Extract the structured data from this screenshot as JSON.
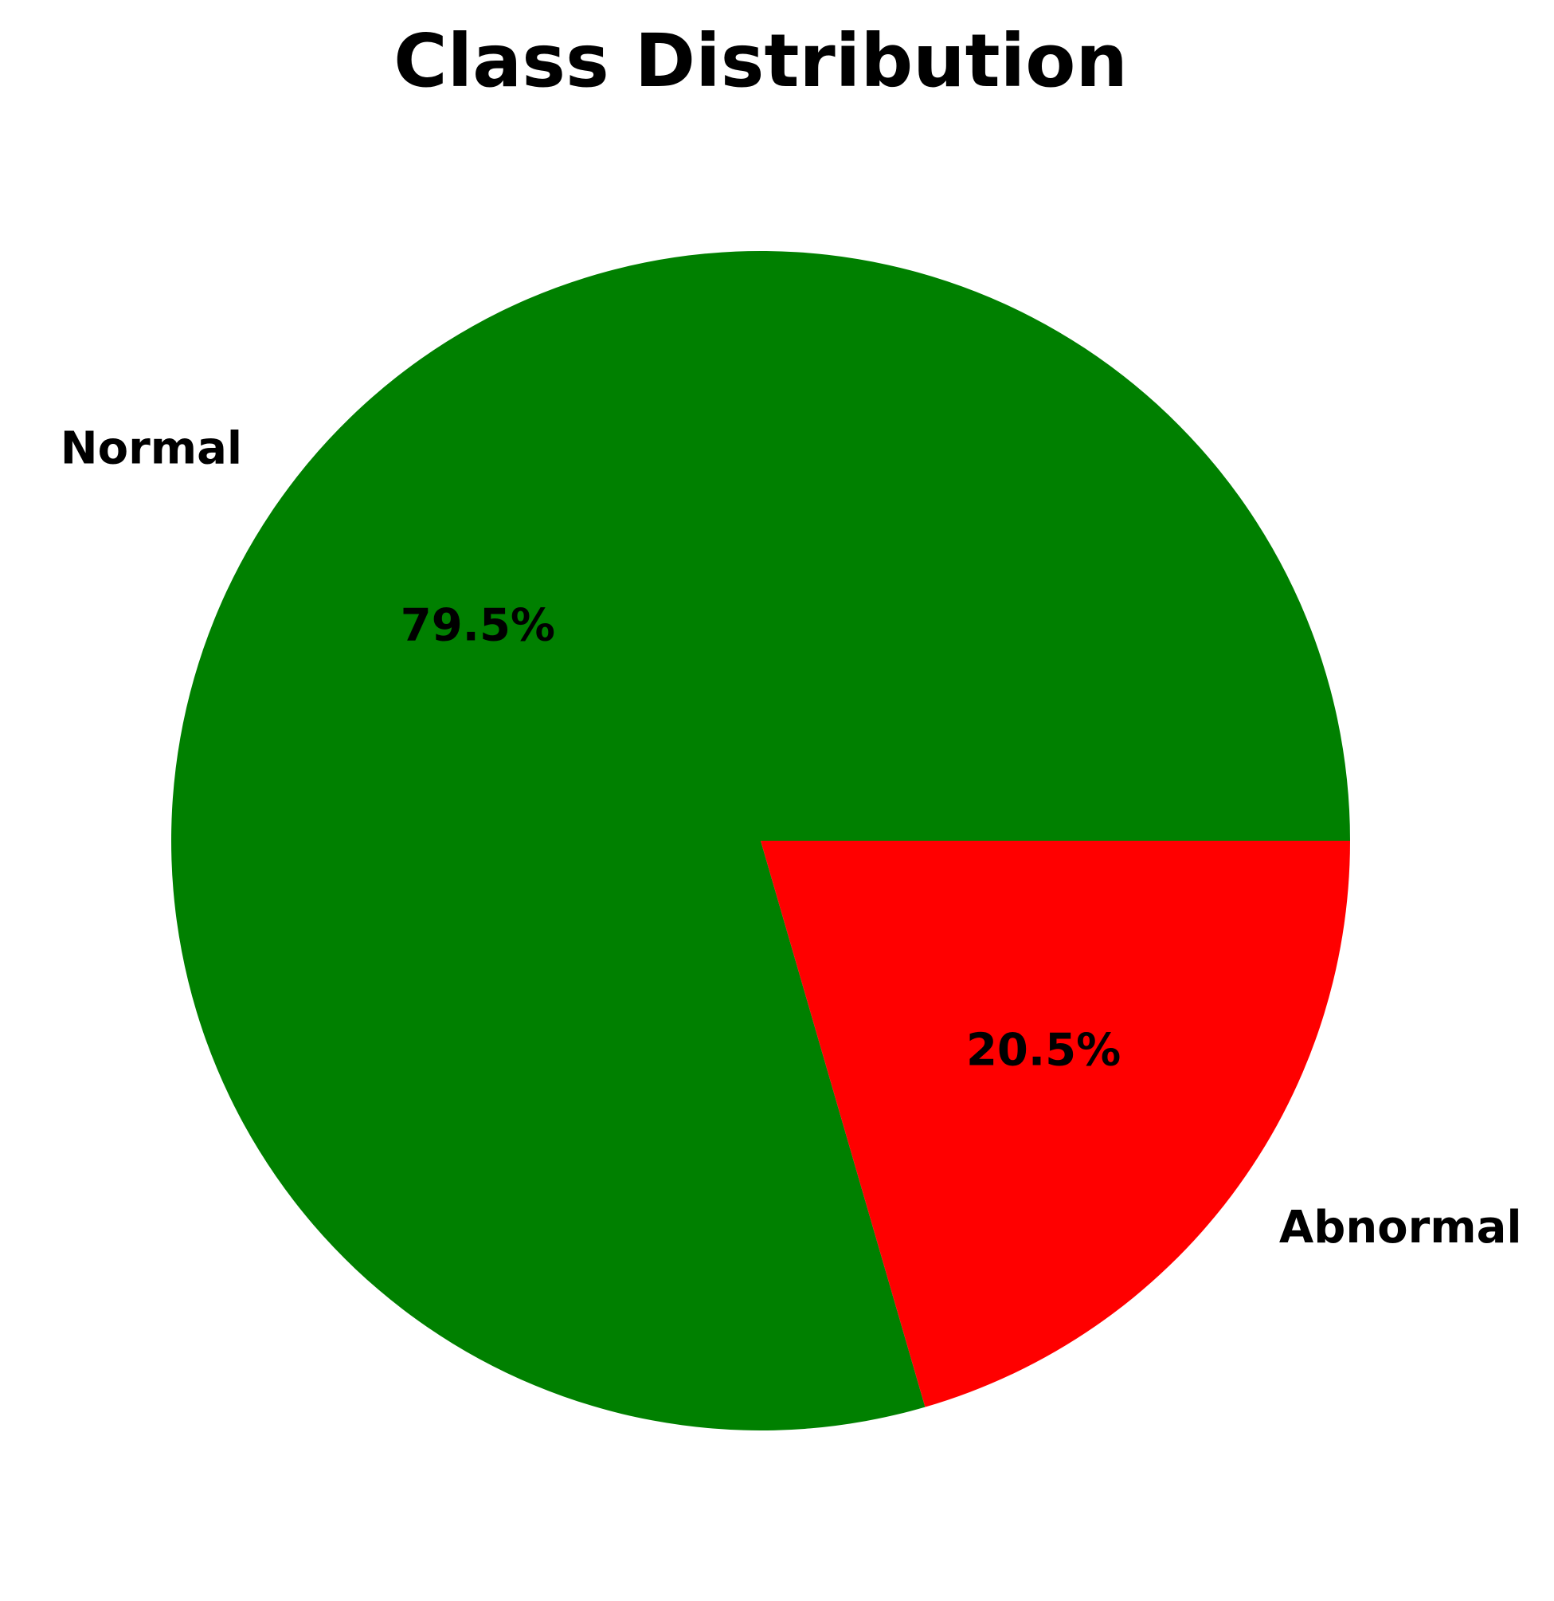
{
  "chart_data": {
    "type": "pie",
    "title": "Class Distribution",
    "slices": [
      {
        "label": "Normal",
        "value": 79.5,
        "pct_label": "79.5%",
        "color": "#008000"
      },
      {
        "label": "Abnormal",
        "value": 20.5,
        "pct_label": "20.5%",
        "color": "#ff0000"
      }
    ],
    "start_angle_deg": 0,
    "direction": "counterclockwise",
    "legend": "none"
  }
}
